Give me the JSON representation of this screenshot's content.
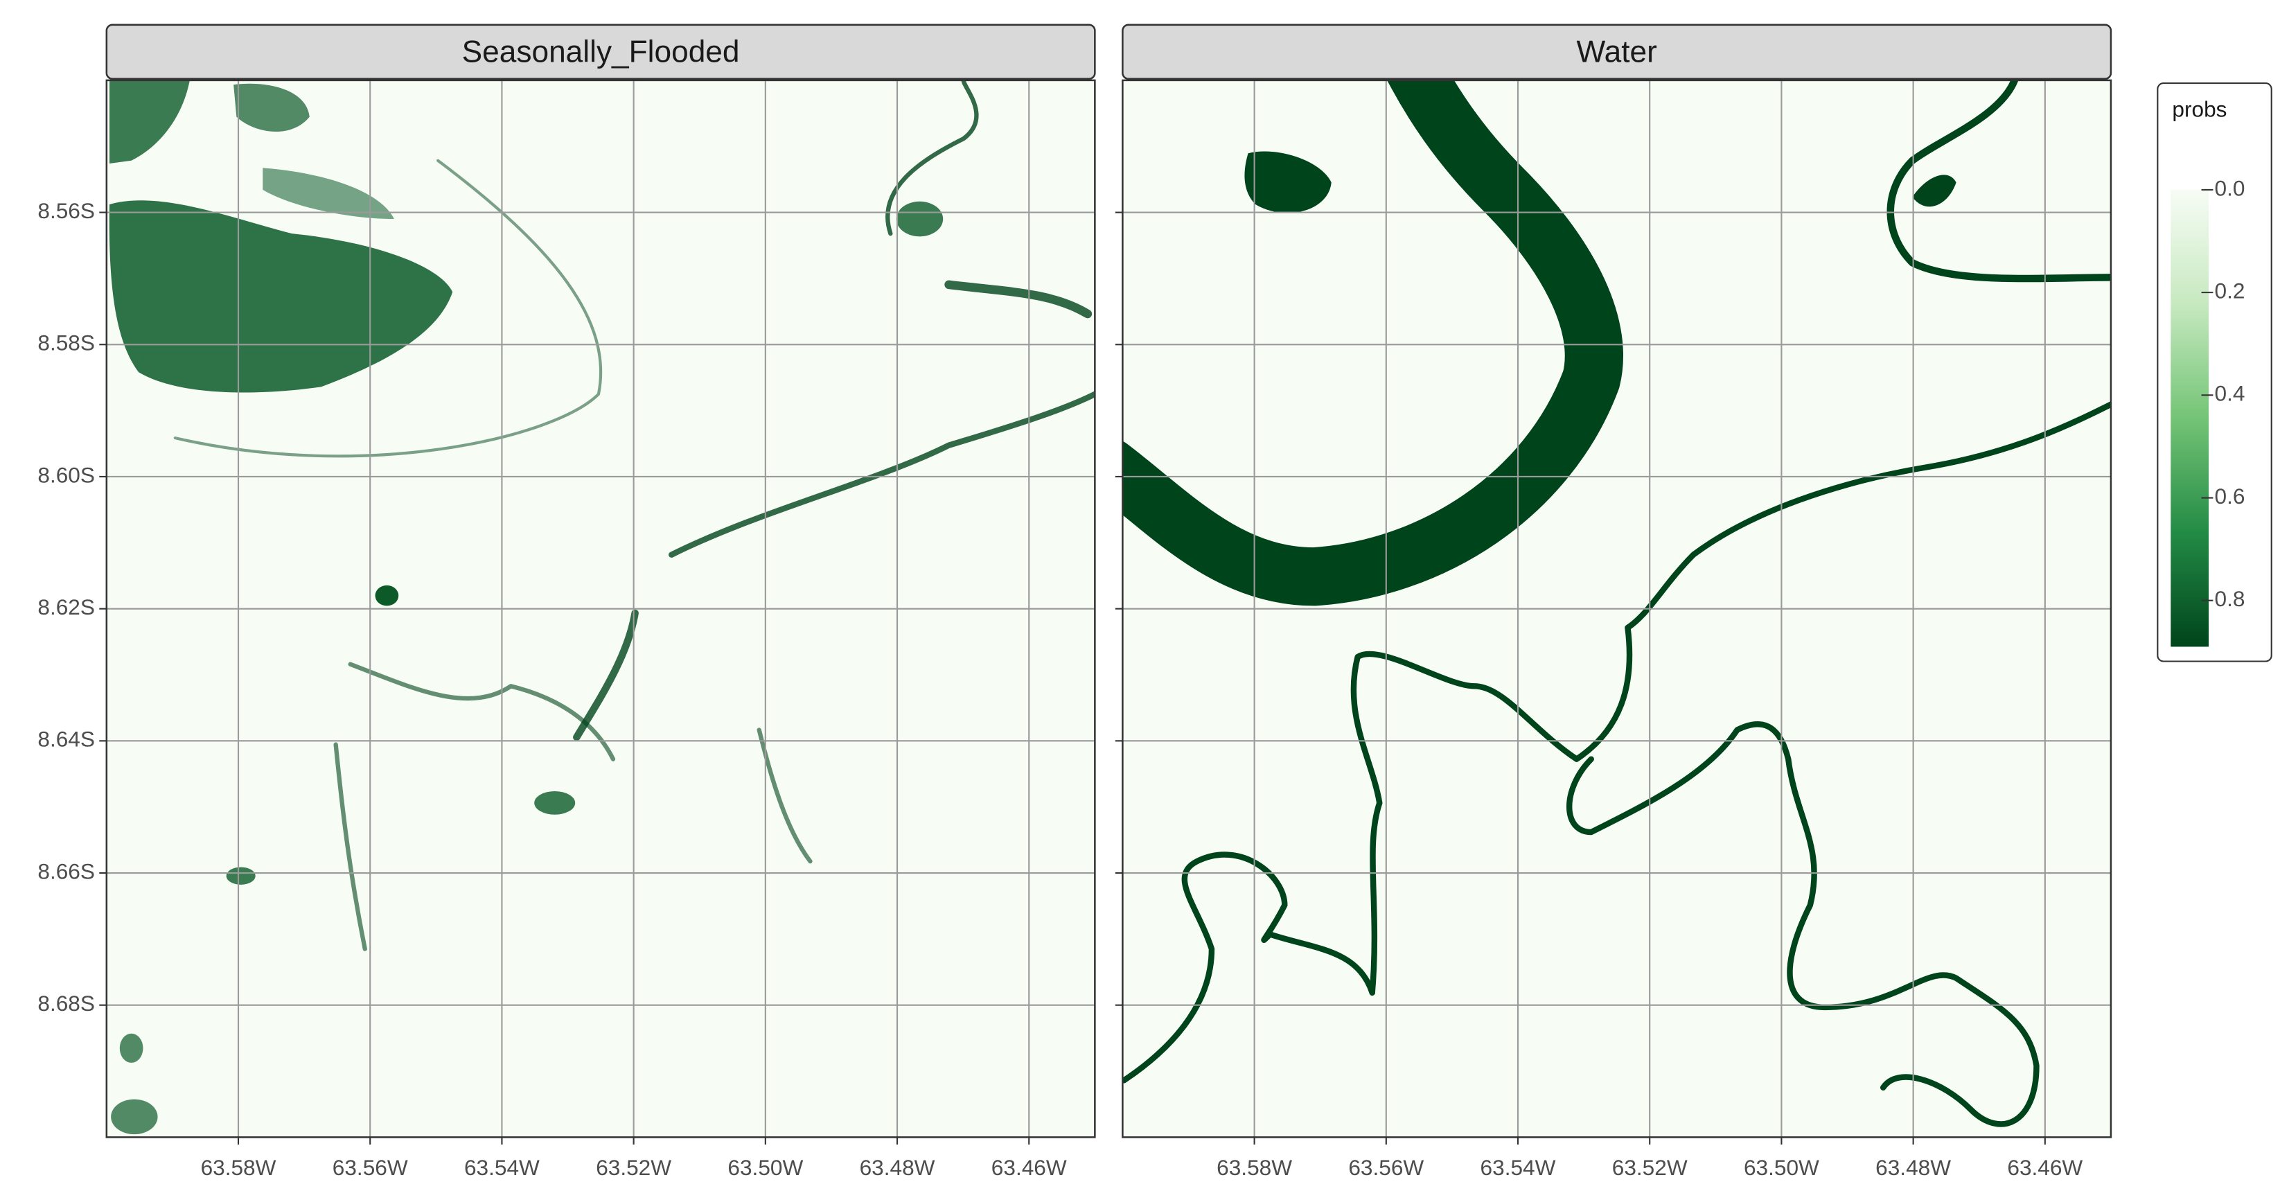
{
  "chart_data": {
    "type": "raster",
    "facets": [
      {
        "title": "Seasonally_Flooded"
      },
      {
        "title": "Water"
      }
    ],
    "xlim": [
      -63.6,
      -63.45
    ],
    "ylim": [
      -8.7,
      -8.54
    ],
    "xticks": [
      {
        "value": -63.58,
        "label": "63.58W"
      },
      {
        "value": -63.56,
        "label": "63.56W"
      },
      {
        "value": -63.54,
        "label": "63.54W"
      },
      {
        "value": -63.52,
        "label": "63.52W"
      },
      {
        "value": -63.5,
        "label": "63.50W"
      },
      {
        "value": -63.48,
        "label": "63.48W"
      },
      {
        "value": -63.46,
        "label": "63.46W"
      }
    ],
    "yticks": [
      {
        "value": -8.56,
        "label": "8.56S"
      },
      {
        "value": -8.58,
        "label": "8.58S"
      },
      {
        "value": -8.6,
        "label": "8.60S"
      },
      {
        "value": -8.62,
        "label": "8.62S"
      },
      {
        "value": -8.64,
        "label": "8.64S"
      },
      {
        "value": -8.66,
        "label": "8.66S"
      },
      {
        "value": -8.68,
        "label": "8.68S"
      }
    ],
    "grid": true,
    "legend": {
      "title": "probs",
      "position": "right",
      "colorlim": [
        0,
        0.89
      ],
      "colors": [
        "#f7fcf5",
        "#c7e9c0",
        "#74c476",
        "#238b45",
        "#00441b"
      ],
      "ticks": [
        {
          "value": 0,
          "label": "0.0"
        },
        0.2,
        0.4,
        0.6,
        0.8
      ]
    }
  }
}
